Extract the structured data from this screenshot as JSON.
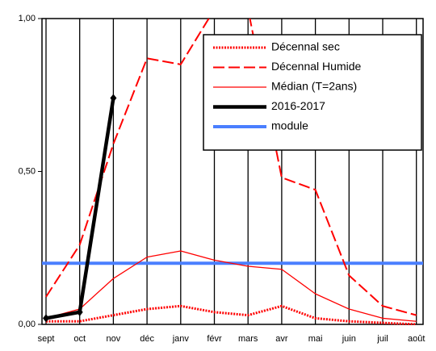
{
  "chart_data": {
    "type": "line",
    "categories": [
      "sept",
      "oct",
      "nov",
      "déc",
      "janv",
      "févr",
      "mars",
      "avr",
      "mai",
      "juin",
      "juil",
      "août"
    ],
    "series": [
      {
        "name": "Décennal sec",
        "color": "#ff0000",
        "style": "dotted",
        "values": [
          0.01,
          0.01,
          0.03,
          0.05,
          0.06,
          0.04,
          0.03,
          0.06,
          0.02,
          0.01,
          0.005,
          0
        ]
      },
      {
        "name": "Décennal Humide",
        "color": "#ff0000",
        "style": "dashed",
        "values": [
          0.09,
          0.26,
          0.59,
          0.87,
          0.85,
          1.03,
          1.03,
          0.48,
          0.44,
          0.16,
          0.06,
          0.03
        ]
      },
      {
        "name": "Médian (T=2ans)",
        "color": "#ff0000",
        "style": "thin",
        "values": [
          0.02,
          0.05,
          0.15,
          0.22,
          0.24,
          0.21,
          0.19,
          0.18,
          0.1,
          0.05,
          0.02,
          0.01
        ]
      },
      {
        "name": "2016-2017",
        "color": "#000000",
        "style": "bold-marker",
        "values": [
          0.02,
          0.04,
          0.74,
          null,
          null,
          null,
          null,
          null,
          null,
          null,
          null,
          null
        ]
      }
    ],
    "reference_line": {
      "name": "module",
      "color": "#4a7fff",
      "value": 0.2
    },
    "ylim": [
      0,
      1
    ],
    "yticks": [
      {
        "value": 0,
        "label": "0,00"
      },
      {
        "value": 0.5,
        "label": "0,50"
      },
      {
        "value": 1,
        "label": "1,00"
      }
    ],
    "grid": "vertical",
    "legend": "top-right"
  }
}
